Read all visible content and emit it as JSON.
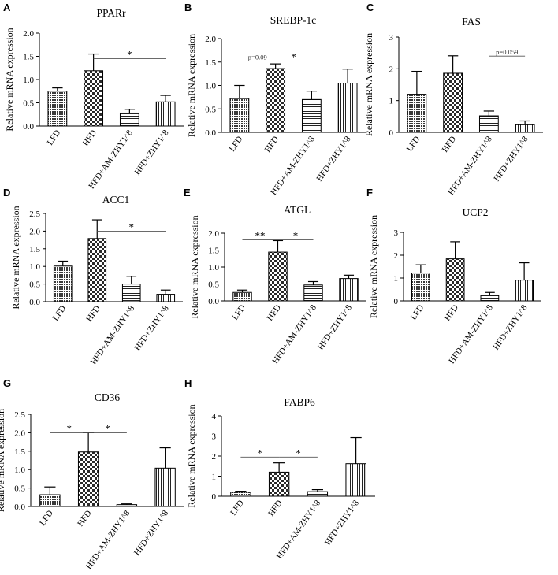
{
  "figure": {
    "categories": [
      "LFD",
      "HFD",
      "HFD+AM-ZHY1^8",
      "HFD+ZHY1^8"
    ],
    "ylabel": "Relative mRNA expression"
  },
  "chart_data": [
    {
      "panel": "A",
      "type": "bar",
      "title": "PPARr",
      "ylabel": "Relative mRNA expression",
      "categories": [
        "LFD",
        "HFD",
        "HFD+AM-ZHY1^8",
        "HFD+ZHY1^8"
      ],
      "values": [
        0.75,
        1.19,
        0.28,
        0.52
      ],
      "errors": [
        0.07,
        0.36,
        0.08,
        0.14
      ],
      "ylim": [
        0,
        2.0
      ],
      "yticks": [
        0,
        0.5,
        1.0,
        1.5,
        2.0
      ],
      "yticklabels": [
        "0.0",
        "0.5",
        "1.0",
        "1.5",
        "2.0"
      ],
      "brackets": [
        {
          "from": 1,
          "to": 3,
          "y": 1.45,
          "label": "*"
        }
      ]
    },
    {
      "panel": "B",
      "type": "bar",
      "title": "SREBP-1c",
      "ylabel": "Relative mRNA expression",
      "categories": [
        "LFD",
        "HFD",
        "HFD+AM-ZHY1^8",
        "HFD+ZHY1^8"
      ],
      "values": [
        0.72,
        1.36,
        0.7,
        1.05
      ],
      "errors": [
        0.28,
        0.1,
        0.18,
        0.3
      ],
      "ylim": [
        0,
        2.0
      ],
      "yticks": [
        0,
        0.5,
        1.0,
        1.5,
        2.0
      ],
      "yticklabels": [
        "0.0",
        "0.5",
        "1.0",
        "1.5",
        "2.0"
      ],
      "brackets": [
        {
          "from": 0,
          "to": 1,
          "y": 1.52,
          "label": "p=0.09"
        },
        {
          "from": 1,
          "to": 2,
          "y": 1.52,
          "label": "*"
        }
      ]
    },
    {
      "panel": "C",
      "type": "bar",
      "title": "FAS",
      "ylabel": "Relative mRNA expression",
      "categories": [
        "LFD",
        "HFD",
        "HFD+AM-ZHY1^8",
        "HFD+ZHY1^8"
      ],
      "values": [
        1.2,
        1.86,
        0.52,
        0.24
      ],
      "errors": [
        0.72,
        0.55,
        0.15,
        0.12
      ],
      "ylim": [
        0,
        3
      ],
      "yticks": [
        0,
        1,
        2,
        3
      ],
      "yticklabels": [
        "0",
        "1",
        "2",
        "3"
      ],
      "brackets": [
        {
          "from": 2,
          "to": 3,
          "y": 2.4,
          "label": "p=0.059"
        }
      ]
    },
    {
      "panel": "D",
      "type": "bar",
      "title": "ACC1",
      "ylabel": "Relative mRNA expression",
      "categories": [
        "LFD",
        "HFD",
        "HFD+AM-ZHY1^8",
        "HFD+ZHY1^8"
      ],
      "values": [
        1.01,
        1.79,
        0.5,
        0.21
      ],
      "errors": [
        0.14,
        0.53,
        0.22,
        0.12
      ],
      "ylim": [
        0,
        2.5
      ],
      "yticks": [
        0,
        0.5,
        1.0,
        1.5,
        2.0,
        2.5
      ],
      "yticklabels": [
        "0.0",
        "0.5",
        "1.0",
        "1.5",
        "2.0",
        "2.5"
      ],
      "brackets": [
        {
          "from": 1,
          "to": 3,
          "y": 2.0,
          "label": "*"
        }
      ]
    },
    {
      "panel": "E",
      "type": "bar",
      "title": "ATGL",
      "ylabel": "Relative mRNA expression",
      "categories": [
        "LFD",
        "HFD",
        "HFD+AM-ZHY1^8",
        "HFD+ZHY1^8"
      ],
      "values": [
        0.25,
        1.44,
        0.47,
        0.66
      ],
      "errors": [
        0.07,
        0.34,
        0.1,
        0.1
      ],
      "ylim": [
        0,
        2.0
      ],
      "yticks": [
        0,
        0.5,
        1.0,
        1.5,
        2.0
      ],
      "yticklabels": [
        "0.0",
        "0.5",
        "1.0",
        "1.5",
        "2.0"
      ],
      "brackets": [
        {
          "from": 0,
          "to": 1,
          "y": 1.8,
          "label": "**"
        },
        {
          "from": 1,
          "to": 2,
          "y": 1.8,
          "label": "*"
        }
      ]
    },
    {
      "panel": "F",
      "type": "bar",
      "title": "UCP2",
      "ylabel": "Relative mRNA expression",
      "categories": [
        "LFD",
        "HFD",
        "HFD+AM-ZHY1^8",
        "HFD+ZHY1^8"
      ],
      "values": [
        1.22,
        1.84,
        0.25,
        0.91
      ],
      "errors": [
        0.36,
        0.75,
        0.12,
        0.76
      ],
      "ylim": [
        0,
        3
      ],
      "yticks": [
        0,
        1,
        2,
        3
      ],
      "yticklabels": [
        "0",
        "1",
        "2",
        "3"
      ],
      "brackets": []
    },
    {
      "panel": "G",
      "type": "bar",
      "title": "CD36",
      "ylabel": "Relative mRNA expression",
      "categories": [
        "LFD",
        "HFD",
        "HFD+AM-ZHY1^8",
        "HFD+ZHY1^8"
      ],
      "values": [
        0.32,
        1.48,
        0.05,
        1.04
      ],
      "errors": [
        0.21,
        0.52,
        0.02,
        0.55
      ],
      "ylim": [
        0,
        2.5
      ],
      "yticks": [
        0,
        0.5,
        1.0,
        1.5,
        2.0,
        2.5
      ],
      "yticklabels": [
        "0.0",
        "0.5",
        "1.0",
        "1.5",
        "2.0",
        "2.5"
      ],
      "brackets": [
        {
          "from": 0,
          "to": 1,
          "y": 2.0,
          "label": "*"
        },
        {
          "from": 1,
          "to": 2,
          "y": 2.0,
          "label": "*"
        }
      ]
    },
    {
      "panel": "H",
      "type": "bar",
      "title": "FABP6",
      "ylabel": "Relative mRNA expression",
      "categories": [
        "LFD",
        "HFD",
        "HFD+AM-ZHY1^8",
        "HFD+ZHY1^8"
      ],
      "values": [
        0.2,
        1.2,
        0.23,
        1.62
      ],
      "errors": [
        0.05,
        0.46,
        0.1,
        1.3
      ],
      "ylim": [
        0,
        4
      ],
      "yticks": [
        0,
        1,
        2,
        3,
        4
      ],
      "yticklabels": [
        "0",
        "1",
        "2",
        "3",
        "4"
      ],
      "brackets": [
        {
          "from": 0,
          "to": 1,
          "y": 1.95,
          "label": "*"
        },
        {
          "from": 1,
          "to": 2,
          "y": 1.95,
          "label": "*"
        }
      ]
    }
  ]
}
